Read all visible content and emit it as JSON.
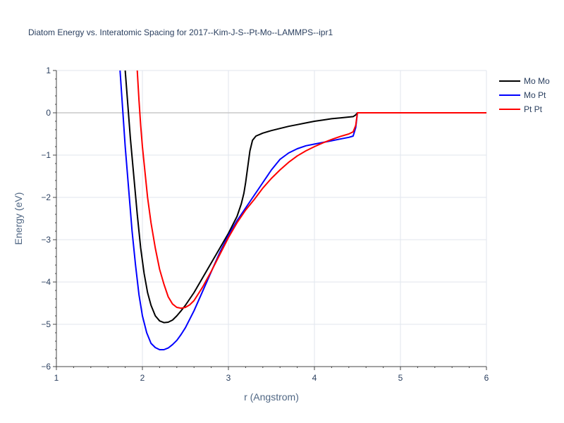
{
  "chart_data": {
    "type": "line",
    "title": "Diatom Energy vs. Interatomic Spacing for 2017--Kim-J-S--Pt-Mo--LAMMPS--ipr1",
    "xlabel": "r (Angstrom)",
    "ylabel": "Energy (eV)",
    "xlim": [
      1,
      6
    ],
    "ylim": [
      -6,
      1
    ],
    "xticks": [
      "1",
      "2",
      "3",
      "4",
      "5",
      "6"
    ],
    "yticks": [
      "1",
      "0",
      "−1",
      "−2",
      "−3",
      "−4",
      "−5",
      "−6"
    ],
    "grid": true,
    "legend_position": "top-right",
    "series": [
      {
        "name": "Mo Mo",
        "color": "#000000",
        "x": [
          1.8,
          1.83,
          1.86,
          1.9,
          1.94,
          1.98,
          2.02,
          2.06,
          2.1,
          2.15,
          2.2,
          2.25,
          2.3,
          2.35,
          2.4,
          2.45,
          2.5,
          2.6,
          2.7,
          2.8,
          2.9,
          3.0,
          3.05,
          3.1,
          3.15,
          3.18,
          3.2,
          3.22,
          3.25,
          3.28,
          3.32,
          3.4,
          3.5,
          3.6,
          3.7,
          3.8,
          3.9,
          4.0,
          4.1,
          4.2,
          4.3,
          4.4,
          4.45,
          4.48,
          4.5,
          4.6,
          4.8,
          5.0,
          5.5,
          6.0
        ],
        "y": [
          1.0,
          0.2,
          -0.6,
          -1.5,
          -2.4,
          -3.2,
          -3.8,
          -4.25,
          -4.55,
          -4.8,
          -4.92,
          -4.96,
          -4.95,
          -4.9,
          -4.8,
          -4.68,
          -4.55,
          -4.25,
          -3.9,
          -3.55,
          -3.2,
          -2.85,
          -2.65,
          -2.45,
          -2.15,
          -1.9,
          -1.65,
          -1.35,
          -0.9,
          -0.65,
          -0.55,
          -0.48,
          -0.42,
          -0.37,
          -0.32,
          -0.28,
          -0.24,
          -0.2,
          -0.17,
          -0.14,
          -0.12,
          -0.1,
          -0.09,
          -0.05,
          0.0,
          0.0,
          0.0,
          0.0,
          0.0,
          0.0
        ]
      },
      {
        "name": "Mo Pt",
        "color": "#0000ff",
        "x": [
          1.74,
          1.77,
          1.8,
          1.84,
          1.88,
          1.92,
          1.96,
          2.0,
          2.05,
          2.1,
          2.15,
          2.2,
          2.25,
          2.3,
          2.35,
          2.4,
          2.45,
          2.5,
          2.6,
          2.7,
          2.8,
          2.9,
          3.0,
          3.1,
          3.2,
          3.3,
          3.4,
          3.5,
          3.6,
          3.7,
          3.8,
          3.9,
          4.0,
          4.1,
          4.2,
          4.3,
          4.4,
          4.45,
          4.48,
          4.5,
          4.6,
          4.8,
          5.0,
          5.5,
          6.0
        ],
        "y": [
          1.0,
          0.1,
          -0.8,
          -1.8,
          -2.8,
          -3.6,
          -4.3,
          -4.8,
          -5.2,
          -5.45,
          -5.55,
          -5.6,
          -5.6,
          -5.56,
          -5.48,
          -5.38,
          -5.24,
          -5.08,
          -4.68,
          -4.22,
          -3.76,
          -3.3,
          -2.9,
          -2.55,
          -2.25,
          -1.95,
          -1.65,
          -1.35,
          -1.1,
          -0.95,
          -0.85,
          -0.78,
          -0.74,
          -0.7,
          -0.66,
          -0.62,
          -0.58,
          -0.55,
          -0.35,
          0.0,
          0.0,
          0.0,
          0.0,
          0.0,
          0.0
        ]
      },
      {
        "name": "Pt Pt",
        "color": "#ff0000",
        "x": [
          1.94,
          1.96,
          1.98,
          2.0,
          2.03,
          2.06,
          2.1,
          2.15,
          2.2,
          2.25,
          2.3,
          2.35,
          2.4,
          2.45,
          2.5,
          2.55,
          2.6,
          2.7,
          2.8,
          2.9,
          3.0,
          3.1,
          3.2,
          3.3,
          3.4,
          3.5,
          3.6,
          3.7,
          3.8,
          3.9,
          4.0,
          4.1,
          4.2,
          4.3,
          4.4,
          4.45,
          4.48,
          4.5,
          4.6,
          4.8,
          5.0,
          5.5,
          6.0
        ],
        "y": [
          1.0,
          0.3,
          -0.3,
          -0.8,
          -1.4,
          -2.0,
          -2.6,
          -3.2,
          -3.7,
          -4.05,
          -4.35,
          -4.52,
          -4.6,
          -4.62,
          -4.6,
          -4.54,
          -4.44,
          -4.12,
          -3.75,
          -3.35,
          -2.95,
          -2.6,
          -2.3,
          -2.05,
          -1.78,
          -1.55,
          -1.35,
          -1.17,
          -1.02,
          -0.9,
          -0.8,
          -0.71,
          -0.63,
          -0.56,
          -0.5,
          -0.45,
          -0.3,
          0.0,
          0.0,
          0.0,
          0.0,
          0.0,
          0.0
        ]
      }
    ]
  }
}
